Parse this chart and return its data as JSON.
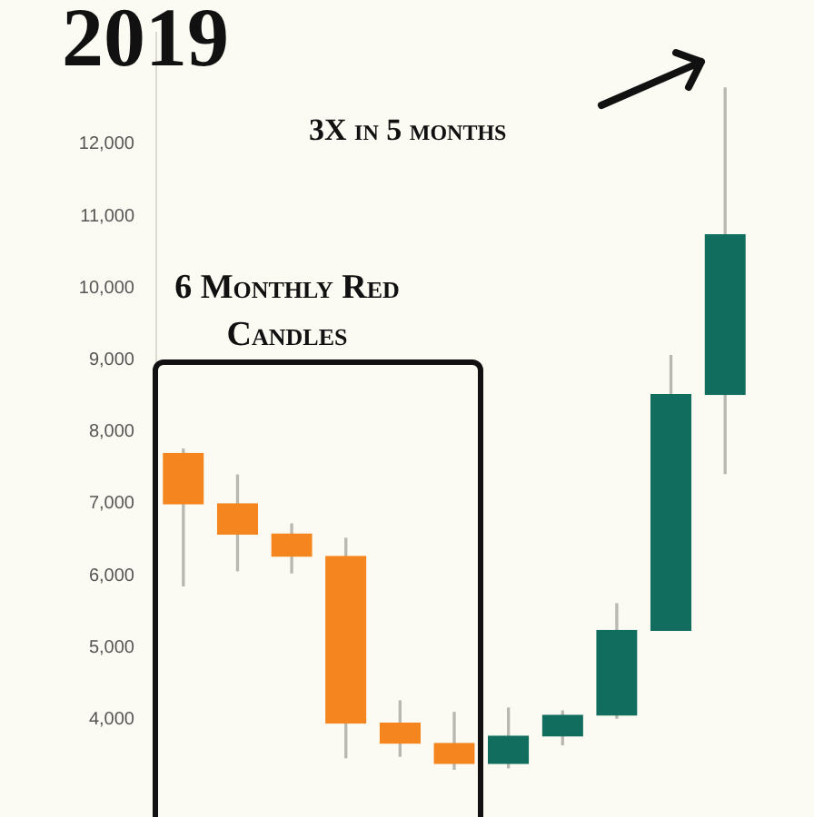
{
  "chart_data": {
    "type": "candlestick",
    "title": "2019",
    "categories": [
      null,
      null,
      null,
      null,
      null,
      null,
      null,
      null,
      null,
      null,
      null
    ],
    "ohlc": [
      [
        7700,
        7760,
        5860,
        7000
      ],
      [
        7000,
        7400,
        6070,
        6580
      ],
      [
        6580,
        6720,
        6040,
        6270
      ],
      [
        6270,
        6520,
        3470,
        3950
      ],
      [
        3950,
        4260,
        3490,
        3670
      ],
      [
        3670,
        4100,
        3310,
        3390
      ],
      [
        3390,
        4160,
        3330,
        3770
      ],
      [
        3770,
        4120,
        3650,
        4060
      ],
      [
        4060,
        5610,
        4020,
        5240
      ],
      [
        5240,
        9060,
        5240,
        8520
      ],
      [
        8520,
        12780,
        7420,
        10740
      ]
    ],
    "colors": [
      "#f5861f",
      "#f5861f",
      "#f5861f",
      "#f5861f",
      "#f5861f",
      "#f5861f",
      "#116e5e",
      "#116e5e",
      "#116e5e",
      "#116e5e",
      "#116e5e"
    ],
    "yticks": [
      {
        "value": 4000,
        "label": "4,000"
      },
      {
        "value": 5000,
        "label": "5,000"
      },
      {
        "value": 6000,
        "label": "6,000"
      },
      {
        "value": 7000,
        "label": "7,000"
      },
      {
        "value": 8000,
        "label": "8,000"
      },
      {
        "value": 9000,
        "label": "9,000"
      },
      {
        "value": 10000,
        "label": "10,000"
      },
      {
        "value": 11000,
        "label": "11,000"
      },
      {
        "value": 12000,
        "label": "12,000"
      }
    ],
    "ylim": [
      3100,
      13550
    ],
    "tick_labels": "y",
    "grid": false,
    "legend": false,
    "annotations": [
      "3X in 5 months",
      "6 Monthly Red Candles"
    ]
  }
}
